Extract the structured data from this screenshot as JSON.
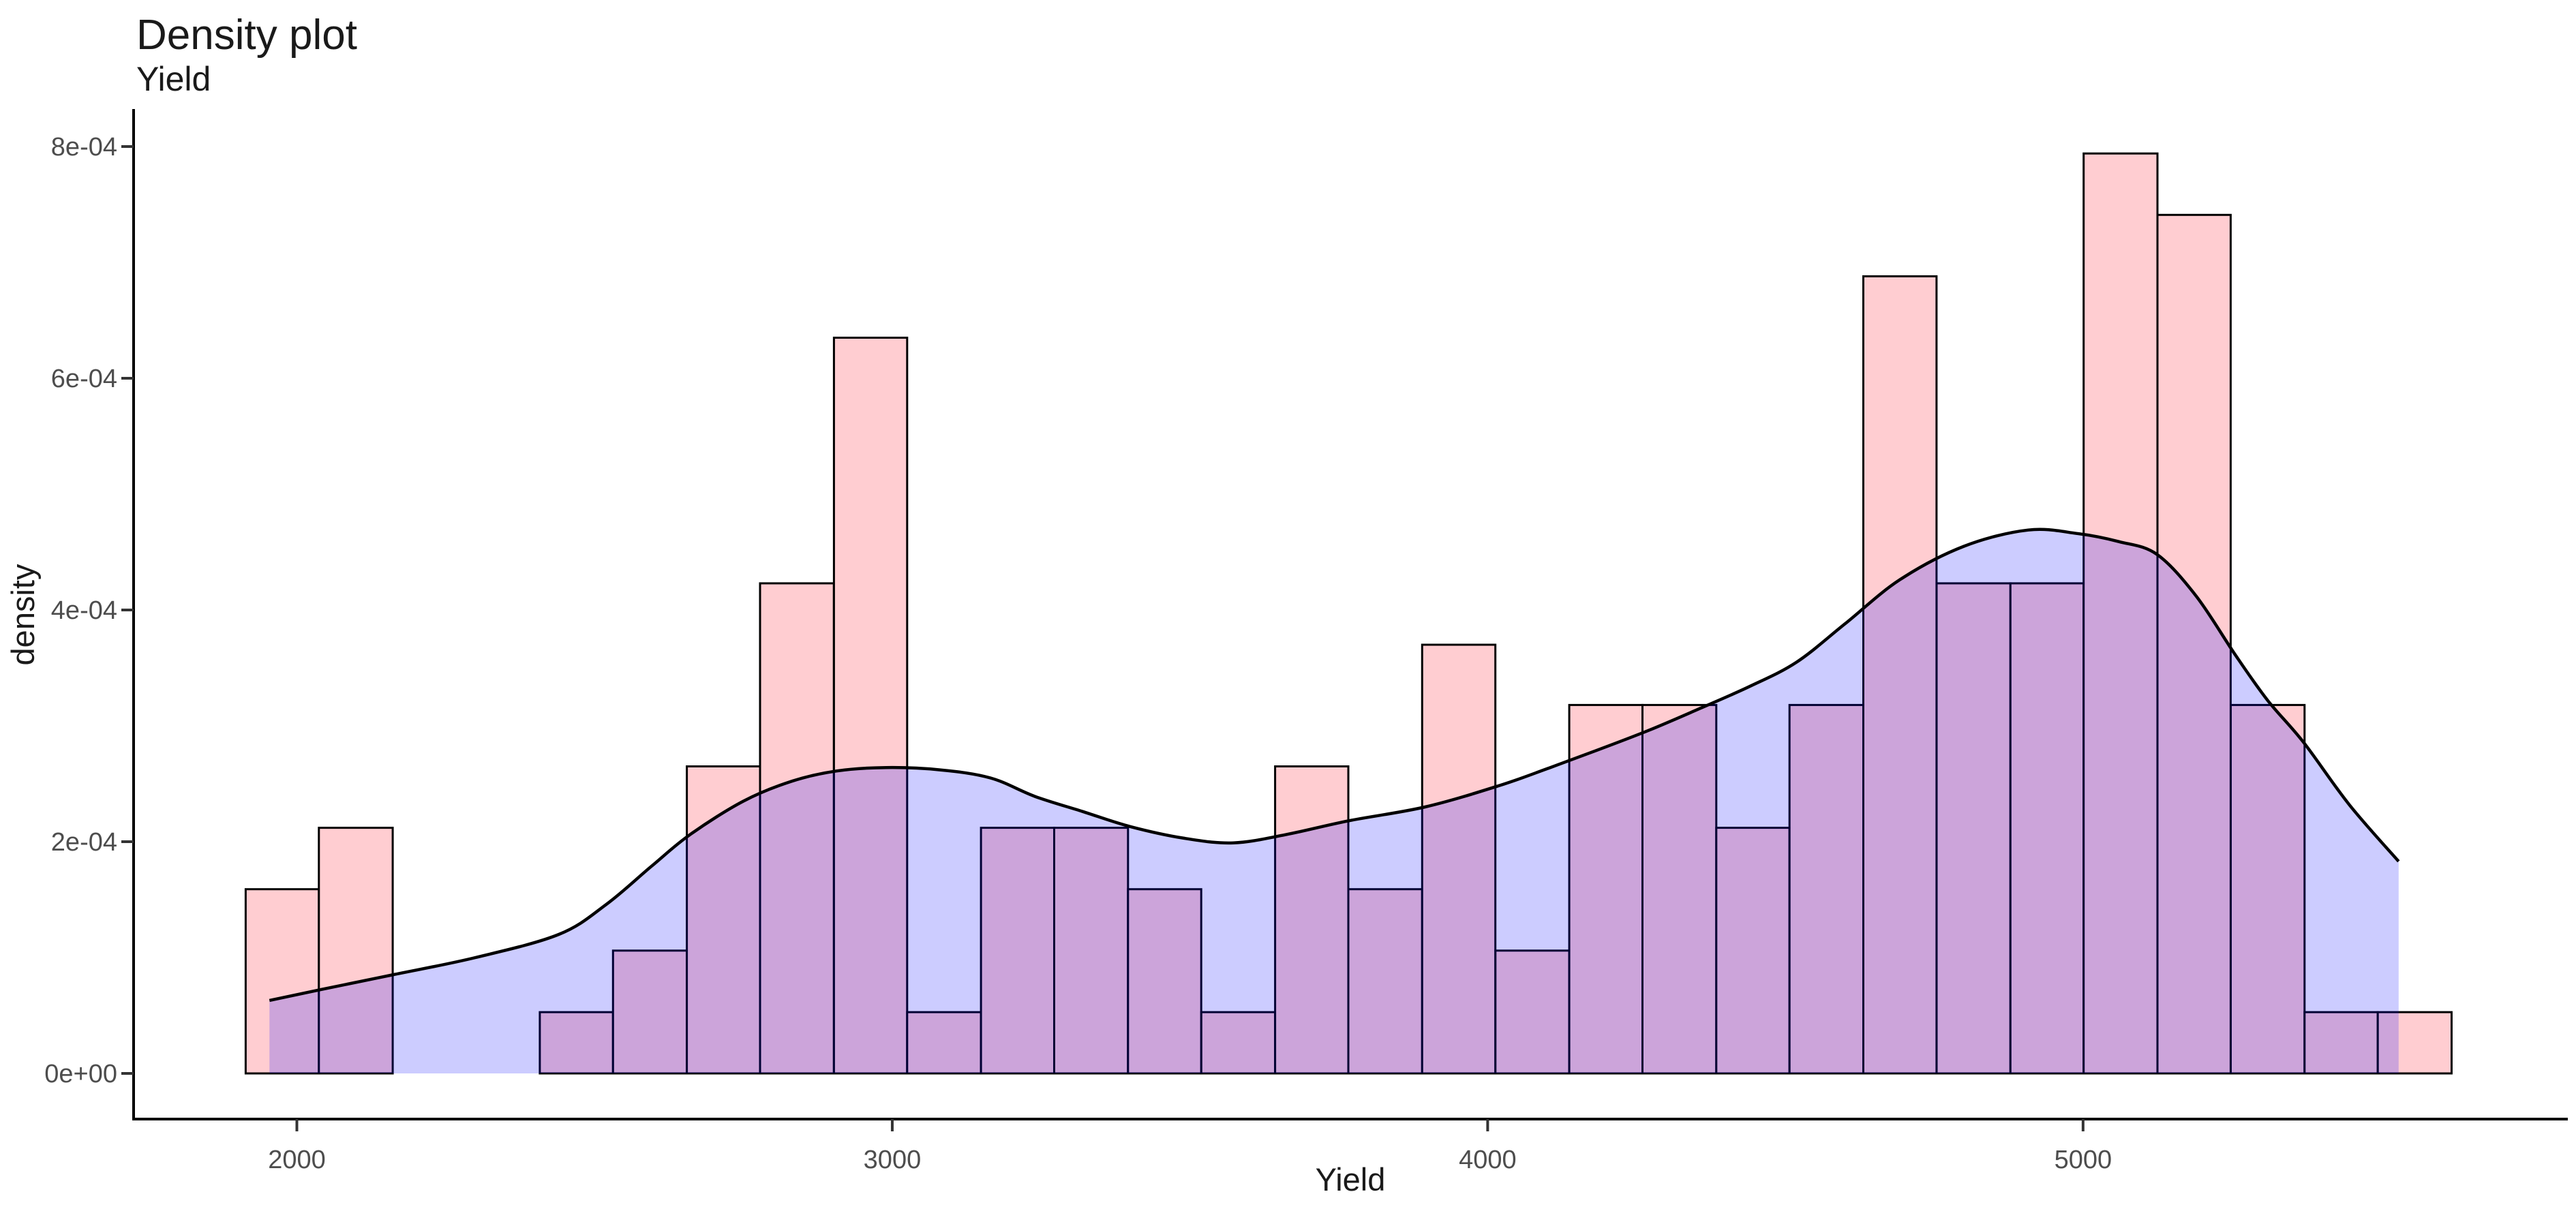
{
  "title": "Density plot",
  "subtitle": "Yield",
  "x_axis": {
    "label": "Yield",
    "ticks": [
      {
        "value": 2000,
        "label": "2000"
      },
      {
        "value": 3000,
        "label": "3000"
      },
      {
        "value": 4000,
        "label": "4000"
      },
      {
        "value": 5000,
        "label": "5000"
      }
    ]
  },
  "y_axis": {
    "label": "density",
    "ticks": [
      {
        "value": 0.0,
        "label": "0e+00"
      },
      {
        "value": 0.0002,
        "label": "2e-04"
      },
      {
        "value": 0.0004,
        "label": "4e-04"
      },
      {
        "value": 0.0006,
        "label": "6e-04"
      },
      {
        "value": 0.0008,
        "label": "8e-04"
      }
    ]
  },
  "colors": {
    "bar_fill": "#ffcdd1",
    "bar_stroke": "#000000",
    "density_fill": "#0000ff",
    "density_fill_opacity": 0.2,
    "density_stroke": "#000000",
    "axis_line": "#000000",
    "tick_label": "#4d4d4d"
  },
  "chart_data": {
    "type": "histogram",
    "title": "Density plot",
    "subtitle": "Yield",
    "xlabel": "Yield",
    "ylabel": "density",
    "xlim": [
      1730,
      5810
    ],
    "ylim": [
      0,
      0.00084
    ],
    "legend": "none",
    "grid": "off",
    "histogram": {
      "n_total": 153,
      "bin_width": 123.5,
      "bins": [
        {
          "x0": 1914,
          "x1": 2037,
          "count": 3,
          "density": 0.000159
        },
        {
          "x0": 2037,
          "x1": 2161,
          "count": 4,
          "density": 0.000212
        },
        {
          "x0": 2161,
          "x1": 2284,
          "count": 0,
          "density": 0.0
        },
        {
          "x0": 2284,
          "x1": 2408,
          "count": 0,
          "density": 0.0
        },
        {
          "x0": 2408,
          "x1": 2531,
          "count": 1,
          "density": 5.29e-05
        },
        {
          "x0": 2531,
          "x1": 2655,
          "count": 2,
          "density": 0.000106
        },
        {
          "x0": 2655,
          "x1": 2778,
          "count": 5,
          "density": 0.000265
        },
        {
          "x0": 2778,
          "x1": 2902,
          "count": 8,
          "density": 0.000423
        },
        {
          "x0": 2902,
          "x1": 3025,
          "count": 12,
          "density": 0.000635
        },
        {
          "x0": 3025,
          "x1": 3149,
          "count": 1,
          "density": 5.29e-05
        },
        {
          "x0": 3149,
          "x1": 3272,
          "count": 4,
          "density": 0.000212
        },
        {
          "x0": 3272,
          "x1": 3396,
          "count": 4,
          "density": 0.000212
        },
        {
          "x0": 3396,
          "x1": 3519,
          "count": 3,
          "density": 0.000159
        },
        {
          "x0": 3519,
          "x1": 3643,
          "count": 1,
          "density": 5.29e-05
        },
        {
          "x0": 3643,
          "x1": 3766,
          "count": 5,
          "density": 0.000265
        },
        {
          "x0": 3766,
          "x1": 3890,
          "count": 3,
          "density": 0.000159
        },
        {
          "x0": 3890,
          "x1": 4013,
          "count": 7,
          "density": 0.00037
        },
        {
          "x0": 4013,
          "x1": 4137,
          "count": 2,
          "density": 0.000106
        },
        {
          "x0": 4137,
          "x1": 4260,
          "count": 6,
          "density": 0.000318
        },
        {
          "x0": 4260,
          "x1": 4384,
          "count": 6,
          "density": 0.000318
        },
        {
          "x0": 4384,
          "x1": 4507,
          "count": 4,
          "density": 0.000212
        },
        {
          "x0": 4507,
          "x1": 4631,
          "count": 6,
          "density": 0.000318
        },
        {
          "x0": 4631,
          "x1": 4754,
          "count": 13,
          "density": 0.000688
        },
        {
          "x0": 4754,
          "x1": 4878,
          "count": 8,
          "density": 0.000423
        },
        {
          "x0": 4878,
          "x1": 5001,
          "count": 8,
          "density": 0.000423
        },
        {
          "x0": 5001,
          "x1": 5125,
          "count": 15,
          "density": 0.000794
        },
        {
          "x0": 5125,
          "x1": 5248,
          "count": 14,
          "density": 0.000741
        },
        {
          "x0": 5248,
          "x1": 5372,
          "count": 6,
          "density": 0.000318
        },
        {
          "x0": 5372,
          "x1": 5495,
          "count": 1,
          "density": 5.29e-05
        },
        {
          "x0": 5495,
          "x1": 5619,
          "count": 1,
          "density": 5.29e-05
        }
      ]
    },
    "density_curve": {
      "points": [
        [
          1954,
          6.3e-05
        ],
        [
          2037,
          7.2e-05
        ],
        [
          2160,
          8.5e-05
        ],
        [
          2300,
          0.0001
        ],
        [
          2440,
          0.00012
        ],
        [
          2520,
          0.000146
        ],
        [
          2596,
          0.000179
        ],
        [
          2660,
          0.000206
        ],
        [
          2750,
          0.000235
        ],
        [
          2830,
          0.000252
        ],
        [
          2906,
          0.000261
        ],
        [
          2990,
          0.000264
        ],
        [
          3080,
          0.000262
        ],
        [
          3165,
          0.000255
        ],
        [
          3240,
          0.000239
        ],
        [
          3320,
          0.000226
        ],
        [
          3400,
          0.000213
        ],
        [
          3490,
          0.000203
        ],
        [
          3573,
          0.000199
        ],
        [
          3660,
          0.000206
        ],
        [
          3766,
          0.000218
        ],
        [
          3895,
          0.00023
        ],
        [
          4017,
          0.000248
        ],
        [
          4100,
          0.000263
        ],
        [
          4184,
          0.000279
        ],
        [
          4270,
          0.000296
        ],
        [
          4352,
          0.000314
        ],
        [
          4440,
          0.000334
        ],
        [
          4519,
          0.000355
        ],
        [
          4600,
          0.000388
        ],
        [
          4692,
          0.000426
        ],
        [
          4800,
          0.000455
        ],
        [
          4908,
          0.000469
        ],
        [
          4990,
          0.000466
        ],
        [
          5060,
          0.000459
        ],
        [
          5124,
          0.000448
        ],
        [
          5190,
          0.000412
        ],
        [
          5256,
          0.000361
        ],
        [
          5310,
          0.000322
        ],
        [
          5370,
          0.000286
        ],
        [
          5447,
          0.000232
        ],
        [
          5530,
          0.000183
        ]
      ]
    }
  }
}
